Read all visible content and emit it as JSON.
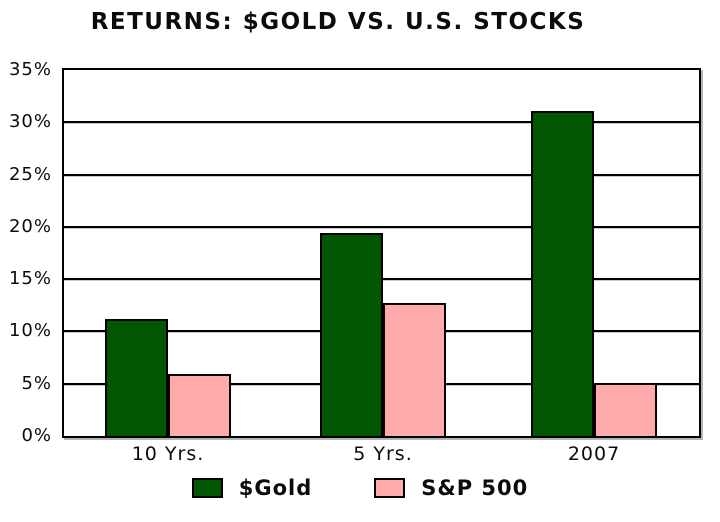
{
  "chart_data": {
    "type": "bar",
    "title": "RETURNS: $GOLD VS. U.S. STOCKS",
    "categories": [
      "10 Yrs.",
      "5 Yrs.",
      "2007"
    ],
    "series": [
      {
        "name": "$Gold",
        "color": "#015601",
        "values": [
          11.2,
          19.4,
          31.1
        ]
      },
      {
        "name": "S&P 500",
        "color": "#ffabab",
        "values": [
          5.9,
          12.7,
          5.1
        ]
      }
    ],
    "xlabel": "",
    "ylabel": "",
    "ylim": [
      0,
      35
    ],
    "ytick_step": 5,
    "yticks": [
      {
        "value": 35,
        "label": "35%"
      },
      {
        "value": 30,
        "label": "30%"
      },
      {
        "value": 25,
        "label": "25%"
      },
      {
        "value": 20,
        "label": "20%"
      },
      {
        "value": 15,
        "label": "15%"
      },
      {
        "value": 10,
        "label": "10%"
      },
      {
        "value": 5,
        "label": "5%"
      },
      {
        "value": 0,
        "label": "0%"
      }
    ],
    "grid": true,
    "legend_position": "bottom"
  }
}
